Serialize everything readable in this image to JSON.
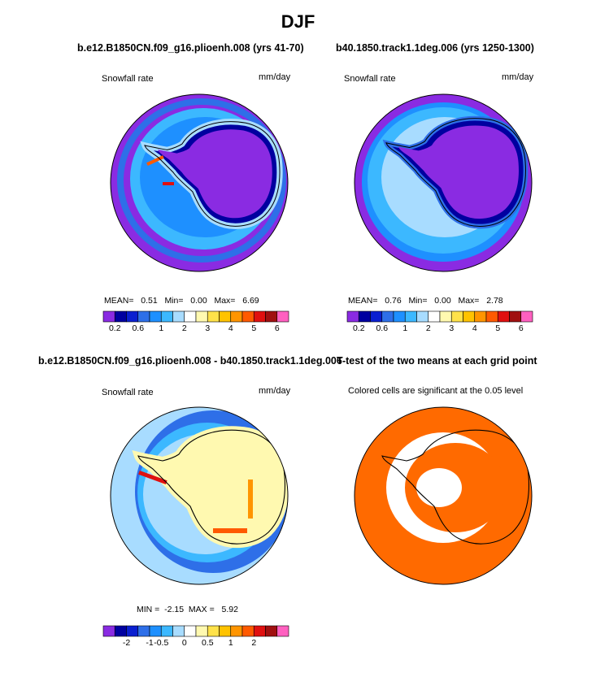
{
  "figure": {
    "title": "DJF",
    "colors": {
      "background": "#ffffff",
      "ocean_orange": "#ff6a00",
      "antarctica_outline": "#000000"
    }
  },
  "chart_data": [
    {
      "type": "heatmap",
      "title": "b.e12.B1850CN.f09_g16.plioenh.008 (yrs 41-70)",
      "left_label": "Snowfall rate",
      "right_label": "mm/day",
      "projection": "south-polar-stereographic",
      "stats": {
        "mean_label": "MEAN=",
        "mean": "0.51",
        "min_label": "Min=",
        "min": "0.00",
        "max_label": "Max=",
        "max": "6.69"
      },
      "colorbar": {
        "levels": [
          0.2,
          0.4,
          0.6,
          0.8,
          1,
          1.5,
          2,
          2.5,
          3,
          3.5,
          4,
          4.5,
          5,
          5.5,
          6
        ],
        "tick_labels": [
          "0.2",
          "0.6",
          "1",
          "2",
          "3",
          "4",
          "5",
          "6"
        ],
        "colors": [
          "#8a2be2",
          "#0000a0",
          "#0a1fd0",
          "#2e6fe8",
          "#1e90ff",
          "#3cb8ff",
          "#a8dcff",
          "#ffffff",
          "#fff9b0",
          "#ffe24a",
          "#ffc300",
          "#ff9500",
          "#ff5a00",
          "#e01010",
          "#a01010",
          "#ff60c0"
        ]
      }
    },
    {
      "type": "heatmap",
      "title": "b40.1850.track1.1deg.006 (yrs 1250-1300)",
      "left_label": "Snowfall rate",
      "right_label": "mm/day",
      "projection": "south-polar-stereographic",
      "stats": {
        "mean_label": "MEAN=",
        "mean": "0.76",
        "min_label": "Min=",
        "min": "0.00",
        "max_label": "Max=",
        "max": "2.78"
      },
      "colorbar": {
        "levels": [
          0.2,
          0.4,
          0.6,
          0.8,
          1,
          1.5,
          2,
          2.5,
          3,
          3.5,
          4,
          4.5,
          5,
          5.5,
          6
        ],
        "tick_labels": [
          "0.2",
          "0.6",
          "1",
          "2",
          "3",
          "4",
          "5",
          "6"
        ],
        "colors": [
          "#8a2be2",
          "#0000a0",
          "#0a1fd0",
          "#2e6fe8",
          "#1e90ff",
          "#3cb8ff",
          "#a8dcff",
          "#ffffff",
          "#fff9b0",
          "#ffe24a",
          "#ffc300",
          "#ff9500",
          "#ff5a00",
          "#e01010",
          "#a01010",
          "#ff60c0"
        ]
      }
    },
    {
      "type": "heatmap",
      "title": "b.e12.B1850CN.f09_g16.plioenh.008 - b40.1850.track1.1deg.006",
      "left_label": "Snowfall rate",
      "right_label": "mm/day",
      "projection": "south-polar-stereographic",
      "stats": {
        "min_label": "MIN =",
        "min": "-2.15",
        "max_label": "MAX =",
        "max": "5.92"
      },
      "colorbar": {
        "levels": [
          -2.5,
          -2,
          -1.5,
          -1,
          -0.5,
          -0.25,
          0,
          0.25,
          0.5,
          0.75,
          1,
          1.5,
          2,
          2.5
        ],
        "tick_labels": [
          "-2",
          "-1",
          "-0.5",
          "0",
          "0.5",
          "1",
          "2"
        ],
        "colors": [
          "#8a2be2",
          "#0000a0",
          "#0a1fd0",
          "#2e6fe8",
          "#1e90ff",
          "#3cb8ff",
          "#a8dcff",
          "#ffffff",
          "#fff9b0",
          "#ffe24a",
          "#ffc300",
          "#ff9500",
          "#ff5a00",
          "#e01010",
          "#a01010",
          "#ff60c0"
        ]
      }
    },
    {
      "type": "heatmap",
      "title": "T-test of the two means at each grid point",
      "subtitle": "Colored cells are significant at the 0.05 level",
      "projection": "south-polar-stereographic"
    }
  ]
}
